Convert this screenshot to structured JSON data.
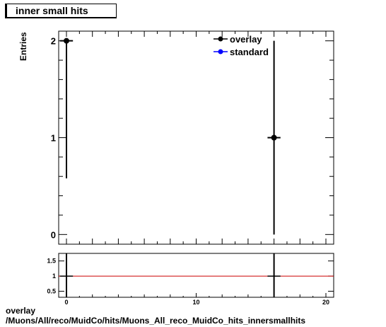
{
  "title": "inner small hits",
  "caption": {
    "line1": "overlay",
    "line2": "/Muons/All/reco/MuidCo/hits/Muons_All_reco_MuidCo_hits_innersmallhits"
  },
  "chart_data": [
    {
      "type": "scatter",
      "panel": "main",
      "ylabel": "Entries",
      "xlim": [
        -0.6,
        20.6
      ],
      "ylim": [
        -0.1,
        2.1
      ],
      "yticks": [
        0,
        1,
        2
      ],
      "legend": {
        "placement": "top-right",
        "entries": [
          "overlay",
          "standard"
        ]
      },
      "series": [
        {
          "name": "overlay",
          "color": "#000000",
          "points": [
            {
              "x": 0,
              "y": 2,
              "err_low": 1.42,
              "err_high": 0,
              "x_err": 0.5
            },
            {
              "x": 16,
              "y": 1,
              "err_low": 1,
              "err_high": 1,
              "x_err": 0.5
            }
          ]
        },
        {
          "name": "standard",
          "color": "#0000ff",
          "points": []
        }
      ]
    },
    {
      "type": "line",
      "panel": "ratio",
      "xlim": [
        -0.6,
        20.6
      ],
      "ylim": [
        0.3,
        1.75
      ],
      "xticks": [
        0,
        10,
        20
      ],
      "yticks": [
        0.5,
        1,
        1.5
      ],
      "ytick_labels": [
        "0.5",
        "1",
        "1.5"
      ],
      "reference_line": {
        "y": 1,
        "color": "#cc0000"
      },
      "points": [
        {
          "x": 0,
          "y": 1,
          "x_err": 0.5
        },
        {
          "x": 16,
          "y": 1,
          "x_err": 0.5
        }
      ]
    }
  ]
}
